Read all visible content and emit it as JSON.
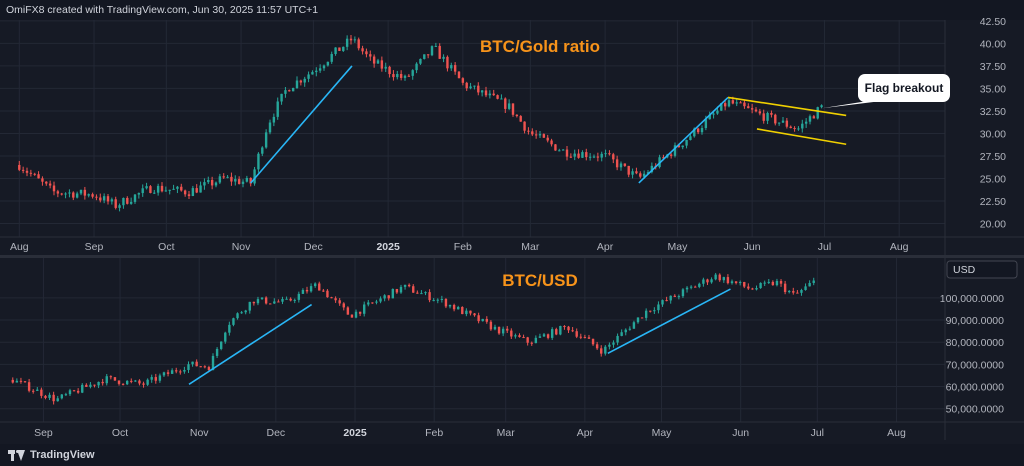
{
  "header": {
    "attribution": "OmiFX8 created with TradingView.com, Jun 30, 2025 11:57 UTC+1"
  },
  "footer": {
    "brand": "TradingView"
  },
  "colors": {
    "up": "#26a69a",
    "down": "#ef5350",
    "trend": "#29b6f6",
    "flag": "#f0d000",
    "title": "#f7931a",
    "grid": "#232835",
    "axis_text": "#b2b5be"
  },
  "chart_data": [
    {
      "type": "candlestick",
      "title": "BTC/Gold ratio",
      "y_ticks": [
        "42.50",
        "40.00",
        "37.50",
        "35.00",
        "32.50",
        "30.00",
        "27.50",
        "25.00",
        "22.50",
        "20.00"
      ],
      "ylim": [
        18.5,
        42.6
      ],
      "x_labels": [
        "Aug",
        "Sep",
        "Oct",
        "Nov",
        "Dec",
        "2025",
        "Feb",
        "Mar",
        "Apr",
        "May",
        "Jun",
        "Jul",
        "Aug"
      ],
      "series": [
        {
          "date": "2024-08-01",
          "close": 26.5
        },
        {
          "date": "2024-08-15",
          "close": 23.5
        },
        {
          "date": "2024-09-01",
          "close": 23.2
        },
        {
          "date": "2024-09-10",
          "close": 22.0
        },
        {
          "date": "2024-09-25",
          "close": 24.0
        },
        {
          "date": "2024-10-10",
          "close": 23.5
        },
        {
          "date": "2024-10-25",
          "close": 25.0
        },
        {
          "date": "2024-11-05",
          "close": 24.5
        },
        {
          "date": "2024-11-12",
          "close": 31.0
        },
        {
          "date": "2024-11-20",
          "close": 35.0
        },
        {
          "date": "2024-12-01",
          "close": 37.0
        },
        {
          "date": "2024-12-17",
          "close": 40.5
        },
        {
          "date": "2024-12-25",
          "close": 38.0
        },
        {
          "date": "2025-01-08",
          "close": 36.0
        },
        {
          "date": "2025-01-20",
          "close": 39.5
        },
        {
          "date": "2025-02-01",
          "close": 35.5
        },
        {
          "date": "2025-02-20",
          "close": 33.0
        },
        {
          "date": "2025-03-01",
          "close": 30.0
        },
        {
          "date": "2025-03-15",
          "close": 28.0
        },
        {
          "date": "2025-04-01",
          "close": 27.5
        },
        {
          "date": "2025-04-15",
          "close": 25.0
        },
        {
          "date": "2025-05-01",
          "close": 28.5
        },
        {
          "date": "2025-05-22",
          "close": 33.5
        },
        {
          "date": "2025-06-05",
          "close": 32.0
        },
        {
          "date": "2025-06-20",
          "close": 30.5
        },
        {
          "date": "2025-06-30",
          "close": 33.0
        }
      ],
      "annotations": [
        {
          "type": "trendline",
          "from": [
            "2024-11-05",
            24.5
          ],
          "to": [
            "2024-12-17",
            37.5
          ]
        },
        {
          "type": "trendline",
          "from": [
            "2025-04-15",
            24.5
          ],
          "to": [
            "2025-05-22",
            34.0
          ]
        },
        {
          "type": "channel-upper",
          "from": [
            "2025-05-22",
            34.0
          ],
          "to": [
            "2025-07-10",
            32.0
          ]
        },
        {
          "type": "channel-lower",
          "from": [
            "2025-06-03",
            30.5
          ],
          "to": [
            "2025-07-10",
            28.8
          ]
        },
        {
          "type": "callout",
          "text": "Flag breakout",
          "at": [
            "2025-06-30",
            32.8
          ]
        }
      ]
    },
    {
      "type": "candlestick",
      "title": "BTC/USD",
      "currency_label": "USD",
      "y_ticks": [
        "100,000.0000",
        "90,000.0000",
        "80,000.0000",
        "70,000.0000",
        "60,000.0000",
        "50,000.0000"
      ],
      "ylim": [
        44000,
        118000
      ],
      "x_labels": [
        "Sep",
        "Oct",
        "Nov",
        "Dec",
        "2025",
        "Feb",
        "Mar",
        "Apr",
        "May",
        "Jun",
        "Jul",
        "Aug"
      ],
      "series": [
        {
          "date": "2024-08-20",
          "close": 63000
        },
        {
          "date": "2024-09-06",
          "close": 54000
        },
        {
          "date": "2024-09-25",
          "close": 63500
        },
        {
          "date": "2024-10-10",
          "close": 61000
        },
        {
          "date": "2024-10-28",
          "close": 70000
        },
        {
          "date": "2024-11-05",
          "close": 69000
        },
        {
          "date": "2024-11-12",
          "close": 88000
        },
        {
          "date": "2024-11-22",
          "close": 99000
        },
        {
          "date": "2024-12-05",
          "close": 98000
        },
        {
          "date": "2024-12-17",
          "close": 106000
        },
        {
          "date": "2024-12-30",
          "close": 92000
        },
        {
          "date": "2025-01-20",
          "close": 105000
        },
        {
          "date": "2025-02-05",
          "close": 98000
        },
        {
          "date": "2025-02-25",
          "close": 86000
        },
        {
          "date": "2025-03-10",
          "close": 80000
        },
        {
          "date": "2025-03-25",
          "close": 87000
        },
        {
          "date": "2025-04-08",
          "close": 76000
        },
        {
          "date": "2025-04-25",
          "close": 94000
        },
        {
          "date": "2025-05-10",
          "close": 103000
        },
        {
          "date": "2025-05-22",
          "close": 110000
        },
        {
          "date": "2025-06-05",
          "close": 104000
        },
        {
          "date": "2025-06-15",
          "close": 107000
        },
        {
          "date": "2025-06-22",
          "close": 101000
        },
        {
          "date": "2025-06-30",
          "close": 107500
        }
      ],
      "annotations": [
        {
          "type": "trendline",
          "from": [
            "2024-10-28",
            61000
          ],
          "to": [
            "2024-12-15",
            97000
          ]
        },
        {
          "type": "trendline",
          "from": [
            "2025-04-10",
            75000
          ],
          "to": [
            "2025-05-28",
            104000
          ]
        }
      ]
    }
  ]
}
